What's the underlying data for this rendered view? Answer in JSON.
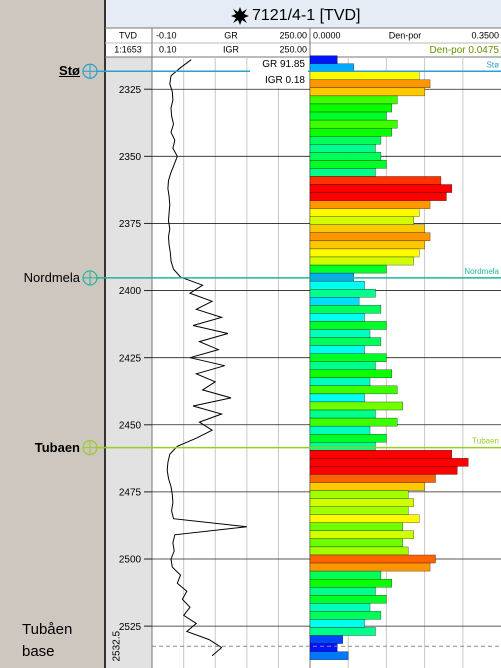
{
  "title": "7121/4-1 [TVD]",
  "header": {
    "depth": {
      "name": "TVD",
      "scale": "1:1653"
    },
    "gr": {
      "min": "-0.10",
      "name": "GR",
      "max": "250.00",
      "min2": "0.10",
      "name2": "IGR",
      "max2": "250.00"
    },
    "por": {
      "min": "0.0000",
      "name": "Den-por",
      "max": "0.3500",
      "cutoff": {
        "name": "Den-por",
        "value": 0.0475
      }
    }
  },
  "readouts": [
    {
      "name": "GR",
      "value": 91.85
    },
    {
      "name": "IGR",
      "value": 0.18
    }
  ],
  "log": {
    "depth_range": [
      2313,
      2540.6
    ],
    "depth_ticks": [
      2325,
      2350,
      2375,
      2400,
      2425,
      2450,
      2475,
      2500,
      2525
    ],
    "gr_range": [
      -0.1,
      250
    ],
    "por_range": [
      0,
      0.35
    ],
    "gr_grid": [
      50,
      100,
      150,
      200
    ],
    "por_grid": [
      0.07,
      0.14,
      0.21,
      0.28
    ],
    "gr_color": "#000000",
    "depths": [
      2314,
      2317,
      2320,
      2323,
      2326,
      2329,
      2332,
      2335,
      2338,
      2341,
      2344,
      2347,
      2350,
      2353,
      2356,
      2359,
      2362,
      2365,
      2368,
      2371,
      2374,
      2377,
      2380,
      2383,
      2386,
      2389,
      2392,
      2395,
      2398,
      2401,
      2404,
      2407,
      2410,
      2413,
      2416,
      2419,
      2422,
      2425,
      2428,
      2431,
      2434,
      2437,
      2440,
      2443,
      2446,
      2449,
      2452,
      2455,
      2458,
      2461,
      2464,
      2467,
      2470,
      2473,
      2476,
      2479,
      2482,
      2485,
      2488,
      2491,
      2494,
      2497,
      2500,
      2503,
      2506,
      2509,
      2512,
      2515,
      2518,
      2521,
      2524,
      2527,
      2530,
      2533,
      2536
    ],
    "gr": [
      62,
      45,
      30,
      28,
      32,
      33,
      30,
      31,
      34,
      30,
      36,
      33,
      40,
      35,
      30,
      26,
      25,
      27,
      28,
      27,
      26,
      28,
      26,
      27,
      29,
      30,
      34,
      45,
      80,
      60,
      95,
      70,
      110,
      65,
      120,
      75,
      105,
      60,
      115,
      70,
      100,
      80,
      125,
      65,
      110,
      75,
      95,
      70,
      40,
      28,
      25,
      24,
      26,
      30,
      32,
      33,
      31,
      34,
      150,
      36,
      33,
      35,
      30,
      32,
      45,
      40,
      55,
      48,
      60,
      50,
      70,
      55,
      90,
      110,
      95
    ],
    "por": [
      0.05,
      0.08,
      0.2,
      0.22,
      0.21,
      0.16,
      0.15,
      0.14,
      0.16,
      0.15,
      0.13,
      0.12,
      0.13,
      0.14,
      0.12,
      0.24,
      0.26,
      0.25,
      0.22,
      0.2,
      0.19,
      0.21,
      0.22,
      0.21,
      0.2,
      0.19,
      0.14,
      0.08,
      0.1,
      0.12,
      0.09,
      0.13,
      0.1,
      0.14,
      0.11,
      0.13,
      0.1,
      0.14,
      0.12,
      0.15,
      0.11,
      0.16,
      0.1,
      0.17,
      0.12,
      0.16,
      0.11,
      0.14,
      0.12,
      0.26,
      0.29,
      0.27,
      0.23,
      0.21,
      0.18,
      0.19,
      0.18,
      0.2,
      0.17,
      0.19,
      0.17,
      0.18,
      0.23,
      0.22,
      0.13,
      0.15,
      0.12,
      0.14,
      0.11,
      0.13,
      0.1,
      0.12,
      0.06,
      0.05,
      0.07
    ]
  },
  "tops": [
    {
      "name": "Stø",
      "depth": 2318.3,
      "color": "#2a9fd0",
      "style": "solid",
      "bold": true,
      "underline": true
    },
    {
      "name": "Nordmela",
      "depth": 2395.3,
      "color": "#22b39a",
      "style": "solid",
      "bold": false,
      "underline": false
    },
    {
      "name": "Tubaen",
      "depth": 2458.5,
      "color": "#9acb2a",
      "style": "solid",
      "bold": true,
      "underline": false
    },
    {
      "name": "Tubåen base",
      "depth": 2532.5,
      "color": "#8a8a8a",
      "style": "dashed",
      "bold": false,
      "underline": false
    }
  ]
}
